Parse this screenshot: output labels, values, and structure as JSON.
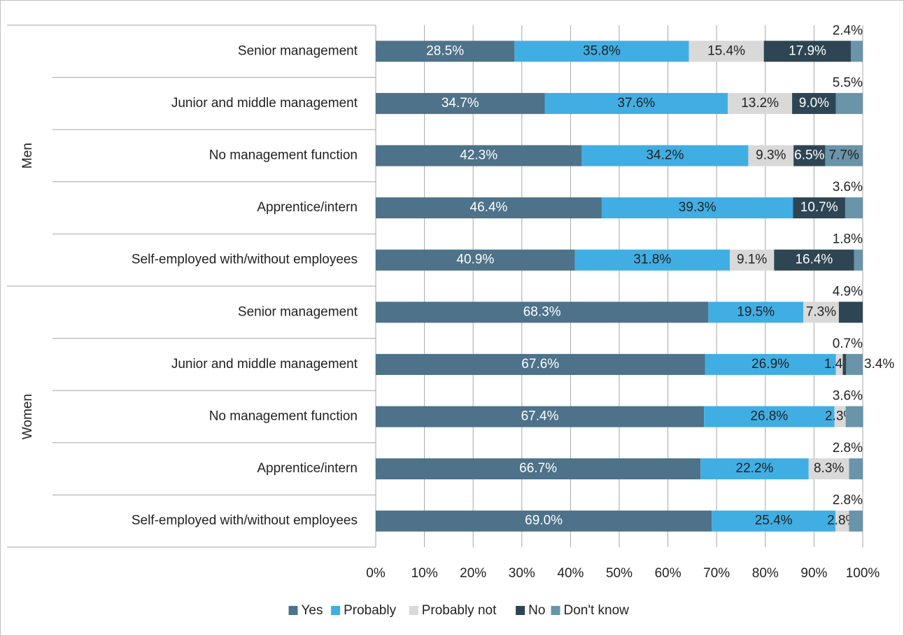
{
  "chart_data": {
    "type": "stacked-bar-horizontal",
    "groups": [
      "Men",
      "Women"
    ],
    "categories": [
      "Senior management",
      "Junior and middle management",
      "No management function",
      "Apprentice/intern",
      "Self-employed with/without employees",
      "Senior management",
      "Junior and middle management",
      "No management function",
      "Apprentice/intern",
      "Self-employed with/without employees"
    ],
    "series": [
      {
        "name": "Yes",
        "color": "#4d7289",
        "values": [
          28.5,
          34.7,
          42.3,
          46.4,
          40.9,
          68.3,
          67.6,
          67.4,
          66.7,
          69.0
        ],
        "value_labels": [
          "28.5%",
          "34.7%",
          "42.3%",
          "46.4%",
          "40.9%",
          "68.3%",
          "67.6%",
          "67.4%",
          "66.7%",
          "69.0%"
        ]
      },
      {
        "name": "Probably",
        "color": "#41aee3",
        "values": [
          35.8,
          37.6,
          34.2,
          39.3,
          31.8,
          19.5,
          26.9,
          26.8,
          22.2,
          25.4
        ],
        "value_labels": [
          "35.8%",
          "37.6%",
          "34.2%",
          "39.3%",
          "31.8%",
          "19.5%",
          "26.9%",
          "26.8%",
          "22.2%",
          "25.4%"
        ]
      },
      {
        "name": "Probably not",
        "color": "#d9d9d9",
        "values": [
          15.4,
          13.2,
          9.3,
          null,
          9.1,
          7.3,
          1.4,
          2.3,
          8.3,
          2.8
        ],
        "value_labels": [
          "15.4%",
          "13.2%",
          "9.3%",
          null,
          "9.1%",
          "7.3%",
          "1.4%",
          "2.3%",
          "8.3%",
          "2.8%"
        ]
      },
      {
        "name": "No",
        "color": "#2e4553",
        "values": [
          17.9,
          9.0,
          6.5,
          10.7,
          16.4,
          4.9,
          0.7,
          null,
          null,
          null
        ],
        "value_labels": [
          "17.9%",
          "9.0%",
          "6.5%",
          "10.7%",
          "16.4%",
          "4.9%",
          "0.7%",
          null,
          null,
          null
        ]
      },
      {
        "name": "Don't know",
        "color": "#6994a9",
        "values": [
          2.4,
          5.5,
          7.7,
          3.6,
          1.8,
          null,
          3.4,
          3.6,
          2.8,
          2.8
        ],
        "value_labels": [
          "2.4%",
          "5.5%",
          "7.7%",
          "3.6%",
          "1.8%",
          null,
          "3.4%",
          "3.6%",
          "2.8%",
          "2.8%"
        ]
      }
    ],
    "xlim": [
      0,
      100
    ],
    "xticks": [
      {
        "value": 0,
        "label": "0%"
      },
      {
        "value": 10,
        "label": "10%"
      },
      {
        "value": 20,
        "label": "20%"
      },
      {
        "value": 30,
        "label": "30%"
      },
      {
        "value": 40,
        "label": "40%"
      },
      {
        "value": 50,
        "label": "50%"
      },
      {
        "value": 60,
        "label": "60%"
      },
      {
        "value": 70,
        "label": "70%"
      },
      {
        "value": 80,
        "label": "80%"
      },
      {
        "value": 90,
        "label": "90%"
      },
      {
        "value": 100,
        "label": "100%"
      }
    ],
    "grid": true,
    "legend": "bottom"
  }
}
